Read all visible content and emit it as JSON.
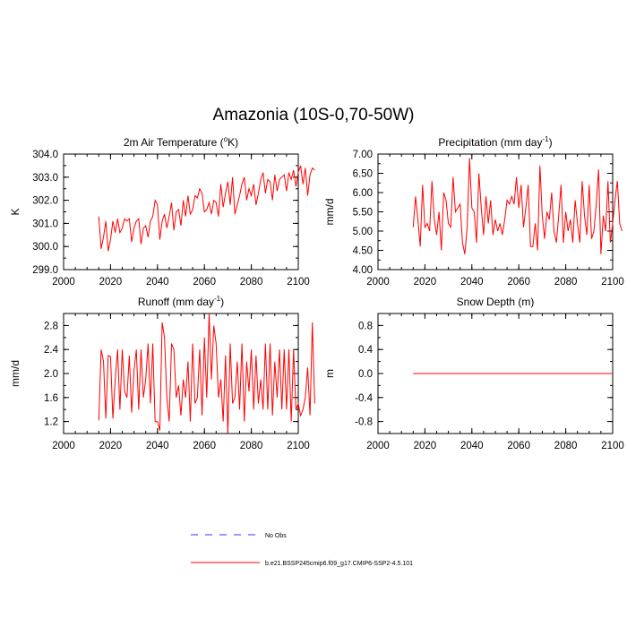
{
  "figure_title": "Amazonia (10S-0,70-50W)",
  "colors": {
    "model": "#ff0000",
    "obs": "#3333ff",
    "axis": "#000000"
  },
  "legend": {
    "obs_label": "No Obs",
    "model_label": "b.e21.BSSP245cmip6.f09_g17.CMIP6-SSP2-4.5.101"
  },
  "chart_data": [
    {
      "type": "line",
      "title": "2m Air Temperature (",
      "title_sup": "o",
      "title_tail": "K)",
      "ylabel": "K",
      "xlabel": "",
      "xlim": [
        2000,
        2100
      ],
      "ylim": [
        299.0,
        304.0
      ],
      "x_ticks": [
        2000,
        2020,
        2040,
        2060,
        2080,
        2100
      ],
      "y_ticks": [
        299.0,
        300.0,
        301.0,
        302.0,
        303.0,
        304.0
      ],
      "y_tick_labels": [
        "299.0",
        "300.0",
        "301.0",
        "302.0",
        "303.0",
        "304.0"
      ],
      "series": [
        {
          "name": "b.e21.BSSP245cmip6.f09_g17.CMIP6-SSP2-4.5.101",
          "x_start": 2015,
          "values": [
            301.3,
            299.9,
            300.4,
            301.1,
            299.8,
            300.3,
            301.1,
            300.6,
            301.2,
            300.6,
            300.8,
            301.2,
            301.1,
            301.2,
            300.2,
            300.8,
            301.1,
            301.2,
            300.1,
            300.8,
            300.9,
            300.4,
            301.1,
            301.3,
            302.0,
            301.8,
            300.3,
            301.1,
            301.4,
            300.8,
            301.3,
            301.9,
            300.7,
            301.5,
            301.6,
            300.9,
            302.0,
            301.3,
            302.2,
            301.4,
            301.6,
            302.2,
            302.1,
            302.5,
            302.3,
            301.5,
            301.6,
            301.9,
            301.4,
            302.0,
            301.9,
            301.3,
            302.7,
            301.7,
            302.3,
            302.8,
            301.8,
            303.0,
            301.4,
            301.8,
            302.2,
            302.7,
            303.0,
            302.0,
            302.5,
            302.2,
            302.7,
            301.8,
            302.3,
            302.9,
            303.2,
            302.3,
            302.9,
            302.8,
            302.0,
            303.1,
            302.4,
            302.9,
            303.0,
            303.1,
            302.4,
            303.2,
            302.9,
            303.3,
            302.6,
            303.2,
            303.5,
            302.7,
            303.4,
            302.2,
            303.1,
            303.4,
            303.3
          ]
        }
      ]
    },
    {
      "type": "line",
      "title": "Precipitation (mm day",
      "title_sup": "-1",
      "title_tail": ")",
      "ylabel": "mm/d",
      "xlabel": "",
      "xlim": [
        2000,
        2100
      ],
      "ylim": [
        4.0,
        7.0
      ],
      "x_ticks": [
        2000,
        2020,
        2040,
        2060,
        2080,
        2100
      ],
      "y_ticks": [
        4.0,
        4.5,
        5.0,
        5.5,
        6.0,
        6.5,
        7.0
      ],
      "y_tick_labels": [
        "4.00",
        "4.50",
        "5.00",
        "5.50",
        "6.00",
        "6.50",
        "7.00"
      ],
      "series": [
        {
          "name": "b.e21.BSSP245cmip6.f09_g17.CMIP6-SSP2-4.5.101",
          "x_start": 2015,
          "values": [
            5.1,
            5.9,
            5.3,
            4.6,
            6.2,
            5.1,
            5.2,
            5.0,
            6.3,
            5.3,
            4.9,
            5.5,
            4.5,
            6.0,
            5.8,
            5.2,
            5.1,
            6.4,
            5.5,
            5.6,
            5.7,
            4.7,
            4.4,
            5.1,
            6.9,
            5.6,
            5.5,
            4.7,
            6.5,
            5.6,
            4.9,
            5.9,
            5.2,
            5.8,
            4.9,
            5.3,
            5.0,
            5.2,
            4.9,
            5.3,
            5.8,
            5.7,
            5.9,
            5.7,
            6.4,
            5.6,
            6.2,
            5.1,
            5.6,
            6.2,
            4.6,
            4.6,
            5.2,
            4.5,
            6.7,
            5.4,
            4.8,
            5.5,
            5.3,
            6.0,
            5.0,
            4.7,
            5.4,
            6.2,
            4.7,
            5.5,
            5.0,
            5.3,
            4.7,
            5.8,
            5.2,
            4.7,
            6.3,
            5.4,
            4.9,
            6.2,
            4.8,
            5.0,
            5.7,
            6.6,
            4.4,
            5.4,
            5.0,
            6.3,
            4.7,
            5.2,
            5.8,
            6.3,
            5.2,
            5.0
          ]
        }
      ]
    },
    {
      "type": "line",
      "title": "Runoff (mm day",
      "title_sup": "-1",
      "title_tail": ")",
      "ylabel": "mm/d",
      "xlabel": "",
      "xlim": [
        2000,
        2100
      ],
      "ylim": [
        1.0,
        3.0
      ],
      "x_ticks": [
        2000,
        2020,
        2040,
        2060,
        2080,
        2100
      ],
      "y_ticks": [
        1.2,
        1.6,
        2.0,
        2.4,
        2.8
      ],
      "y_tick_labels": [
        "1.2",
        "1.6",
        "2.0",
        "2.4",
        "2.8"
      ],
      "series": [
        {
          "name": "b.e21.BSSP245cmip6.f09_g17.CMIP6-SSP2-4.5.101",
          "x_start": 2015,
          "values": [
            1.22,
            2.4,
            2.2,
            1.25,
            2.3,
            2.28,
            1.25,
            1.9,
            2.4,
            1.4,
            2.4,
            1.7,
            1.6,
            2.3,
            1.35,
            2.05,
            2.4,
            1.4,
            2.4,
            1.6,
            1.9,
            2.5,
            1.5,
            2.5,
            1.2,
            1.2,
            1.05,
            2.85,
            2.6,
            1.6,
            1.2,
            2.5,
            2.4,
            1.6,
            1.8,
            1.3,
            1.9,
            1.6,
            2.2,
            1.2,
            2.5,
            1.5,
            1.6,
            2.4,
            1.3,
            2.6,
            1.6,
            3.0,
            1.9,
            2.8,
            2.5,
            1.6,
            1.9,
            1.2,
            2.3,
            1.0,
            2.5,
            1.5,
            1.6,
            2.2,
            1.4,
            2.5,
            1.2,
            2.2,
            1.7,
            2.4,
            1.4,
            2.3,
            1.5,
            1.9,
            1.4,
            2.5,
            1.4,
            2.5,
            1.3,
            2.2,
            1.6,
            2.4,
            1.4,
            2.4,
            1.4,
            2.4,
            1.2,
            2.4,
            1.4,
            1.5,
            1.3,
            1.4,
            1.6,
            2.1,
            1.3,
            2.85,
            1.5
          ]
        }
      ]
    },
    {
      "type": "line",
      "title": "Snow Depth (m)",
      "title_sup": "",
      "title_tail": "",
      "ylabel": "m",
      "xlabel": "",
      "xlim": [
        2000,
        2100
      ],
      "ylim": [
        -1.0,
        1.0
      ],
      "x_ticks": [
        2000,
        2020,
        2040,
        2060,
        2080,
        2100
      ],
      "y_ticks": [
        -0.8,
        -0.4,
        0.0,
        0.4,
        0.8
      ],
      "y_tick_labels": [
        "-0.8",
        "-0.4",
        "0.0",
        "0.4",
        "0.8"
      ],
      "series": [
        {
          "name": "b.e21.BSSP245cmip6.f09_g17.CMIP6-SSP2-4.5.101",
          "x_start": 2015,
          "x_end": 2100,
          "values": [
            0.0,
            0.0
          ]
        }
      ]
    }
  ]
}
